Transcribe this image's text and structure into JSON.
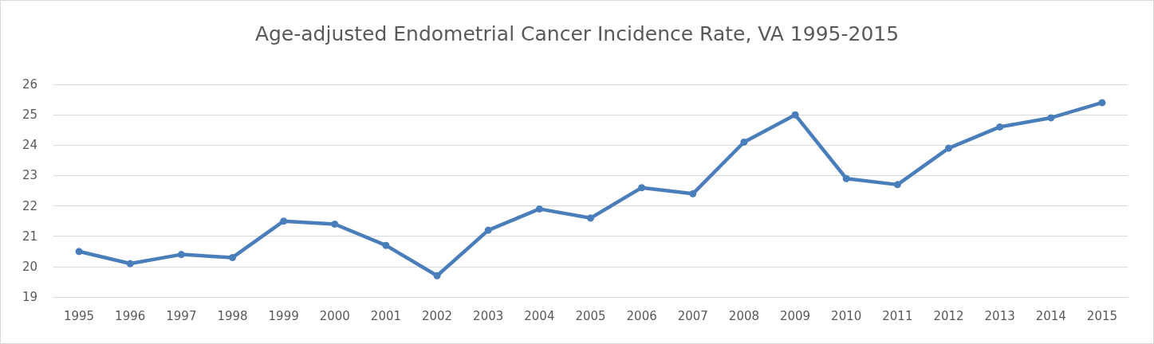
{
  "chart_data": {
    "type": "line",
    "title": "Age-adjusted Endometrial Cancer Incidence Rate, VA 1995-2015",
    "categories": [
      "1995",
      "1996",
      "1997",
      "1998",
      "1999",
      "2000",
      "2001",
      "2002",
      "2003",
      "2004",
      "2005",
      "2006",
      "2007",
      "2008",
      "2009",
      "2010",
      "2011",
      "2012",
      "2013",
      "2014",
      "2015"
    ],
    "series": [
      {
        "color": "#4a7ebb",
        "values": [
          20.5,
          20.1,
          20.4,
          20.3,
          21.5,
          21.4,
          20.7,
          19.7,
          21.2,
          21.9,
          21.6,
          22.6,
          22.4,
          24.1,
          25.0,
          22.9,
          22.7,
          23.9,
          24.6,
          24.9,
          25.4
        ]
      }
    ],
    "ylim": [
      19,
      26
    ],
    "yticks": [
      19,
      20,
      21,
      22,
      23,
      24,
      25,
      26
    ],
    "grid": "y",
    "marker": "circle",
    "line_style": "solid"
  }
}
